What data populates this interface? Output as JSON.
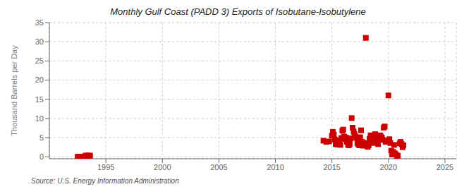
{
  "chart_data": {
    "type": "scatter",
    "title": "Monthly Gulf Coast (PADD 3) Exports of Isobutane-Isobutylene",
    "ylabel": "Thousand Barrels per Day",
    "annotations": [
      "Source: U.S. Energy Information Administration"
    ],
    "color": "#cc0000",
    "marker": "square",
    "grid": true,
    "xlim": [
      1990,
      2026
    ],
    "xticks": [
      1995,
      2000,
      2005,
      2010,
      2015,
      2020,
      2025
    ],
    "ylim": [
      -0.5,
      35
    ],
    "yticks": [
      0,
      5,
      10,
      15,
      20,
      25,
      30,
      35
    ],
    "x": [
      1992.5,
      1992.6,
      1992.7,
      1992.8,
      1992.9,
      1993.0,
      1993.1,
      1993.2,
      1993.3,
      1993.4,
      1993.5,
      1993.6,
      2014.25,
      2014.5,
      2014.75,
      2015.0,
      2015.08,
      2015.17,
      2015.25,
      2015.33,
      2015.42,
      2015.5,
      2015.58,
      2015.67,
      2015.75,
      2015.83,
      2015.92,
      2016.0,
      2016.08,
      2016.17,
      2016.25,
      2016.33,
      2016.42,
      2016.5,
      2016.58,
      2016.67,
      2016.75,
      2016.83,
      2016.92,
      2017.0,
      2017.08,
      2017.17,
      2017.25,
      2017.33,
      2017.42,
      2017.5,
      2017.58,
      2017.67,
      2017.75,
      2017.83,
      2017.92,
      2018.0,
      2018.08,
      2018.17,
      2018.25,
      2018.33,
      2018.42,
      2018.5,
      2018.58,
      2018.67,
      2018.75,
      2018.83,
      2018.92,
      2019.0,
      2019.08,
      2019.17,
      2019.25,
      2019.33,
      2019.42,
      2019.5,
      2019.58,
      2019.67,
      2019.75,
      2019.83,
      2019.92,
      2020.0,
      2020.08,
      2020.17,
      2020.25,
      2020.33,
      2020.42,
      2020.5,
      2020.58,
      2020.67,
      2020.75,
      2020.83,
      2021.0,
      2021.08,
      2021.17,
      2021.25,
      2021.33
    ],
    "values": [
      0.0,
      0.0,
      0.0,
      0.0,
      0.0,
      0.0,
      0.0,
      0.3,
      0.3,
      0.3,
      0.3,
      0.3,
      4.2,
      3.9,
      4.0,
      5.5,
      6.5,
      5.8,
      4.5,
      3.3,
      3.5,
      3.2,
      3.6,
      4.2,
      3.1,
      4.9,
      6.8,
      7.1,
      5.3,
      4.6,
      5.0,
      3.9,
      3.2,
      3.0,
      3.4,
      4.8,
      10.1,
      7.6,
      6.6,
      5.9,
      5.3,
      5.0,
      3.6,
      3.3,
      3.0,
      5.1,
      6.9,
      3.9,
      2.9,
      3.5,
      3.1,
      31.0,
      3.6,
      2.6,
      3.0,
      4.7,
      5.6,
      4.9,
      3.6,
      4.3,
      5.1,
      5.9,
      4.6,
      4.0,
      3.3,
      4.9,
      5.6,
      5.3,
      5.0,
      4.4,
      7.6,
      7.9,
      3.9,
      4.1,
      4.2,
      16.0,
      4.6,
      3.6,
      1.6,
      0.6,
      1.3,
      3.1,
      0.9,
      0.6,
      0.2,
      0.3,
      3.5,
      3.9,
      3.3,
      2.5,
      3.0
    ]
  }
}
